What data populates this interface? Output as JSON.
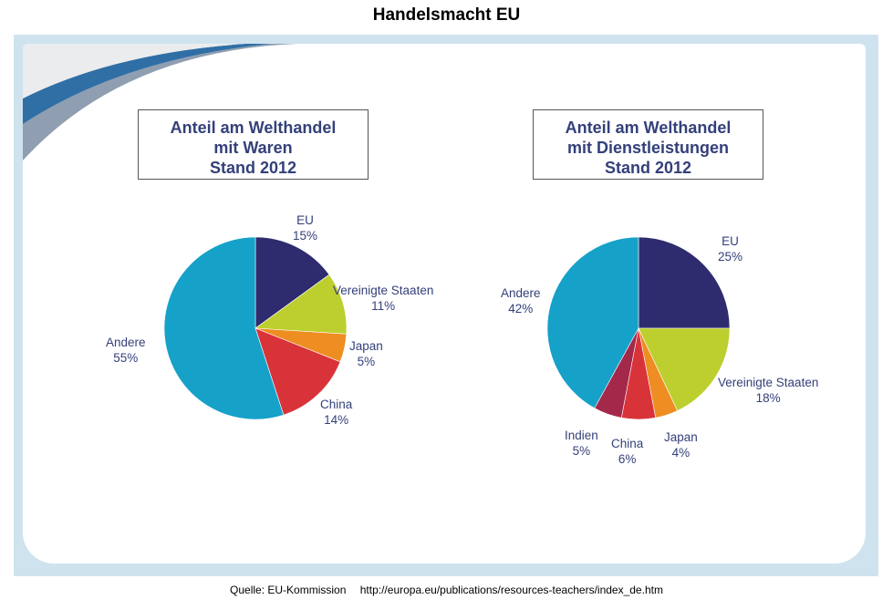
{
  "title": "Handelsmacht EU",
  "source": {
    "label": "Quelle: EU-Kommission",
    "url": "http://europa.eu/publications/resources-teachers/index_de.htm"
  },
  "chart_data": [
    {
      "type": "pie",
      "title_lines": [
        "Anteil am Welthandel",
        "mit Waren",
        "Stand 2012"
      ],
      "categories": [
        "EU",
        "Vereinigte Staaten",
        "Japan",
        "China",
        "Andere"
      ],
      "values": [
        15,
        11,
        5,
        14,
        55
      ],
      "value_labels": [
        "15%",
        "11%",
        "5%",
        "14%",
        "55%"
      ],
      "colors": [
        "#2e2b6e",
        "#bdcf2e",
        "#ee8d22",
        "#d9333a",
        "#16a1c9"
      ]
    },
    {
      "type": "pie",
      "title_lines": [
        "Anteil am Welthandel",
        "mit Dienstleistungen",
        "Stand 2012"
      ],
      "categories": [
        "EU",
        "Vereinigte Staaten",
        "Japan",
        "China",
        "Indien",
        "Andere"
      ],
      "values": [
        25,
        18,
        4,
        6,
        5,
        42
      ],
      "value_labels": [
        "25%",
        "18%",
        "4%",
        "6%",
        "5%",
        "42%"
      ],
      "colors": [
        "#2e2b6e",
        "#bdcf2e",
        "#ee8d22",
        "#d9333a",
        "#a3284a",
        "#16a1c9"
      ]
    }
  ]
}
